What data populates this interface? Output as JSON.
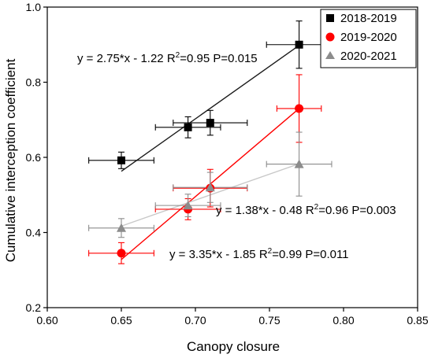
{
  "chart_data": {
    "type": "scatter",
    "xlabel": "Canopy closure",
    "ylabel": "Cumulative interception coefficient",
    "xlim": [
      0.6,
      0.85
    ],
    "ylim": [
      0.2,
      1.0
    ],
    "xticks": [
      0.6,
      0.65,
      0.7,
      0.75,
      0.8,
      0.85
    ],
    "yticks": [
      0.2,
      0.4,
      0.6,
      0.8,
      1.0
    ],
    "xtick_labels": [
      "0.60",
      "0.65",
      "0.70",
      "0.75",
      "0.80",
      "0.85"
    ],
    "ytick_labels": [
      "0.2",
      "0.4",
      "0.6",
      "0.8",
      "1.0"
    ],
    "grid": false,
    "legend_position": "top-right",
    "series": [
      {
        "name": "2018-2019",
        "color": "#000000",
        "line_color": "#1a1a1a",
        "marker": "square",
        "points": [
          {
            "x": 0.65,
            "y": 0.592,
            "xerr": 0.022,
            "yerr": 0.022
          },
          {
            "x": 0.695,
            "y": 0.68,
            "xerr": 0.022,
            "yerr": 0.028
          },
          {
            "x": 0.71,
            "y": 0.692,
            "xerr": 0.025,
            "yerr": 0.033
          },
          {
            "x": 0.77,
            "y": 0.9,
            "xerr": 0.022,
            "yerr": 0.063
          }
        ],
        "fit": {
          "x": [
            0.65,
            0.77
          ],
          "y": [
            0.563,
            0.898
          ]
        },
        "equation": {
          "main": "y = 2.75*x - 1.22  R",
          "sup": "2",
          "tail": "=0.95  P=0.015"
        }
      },
      {
        "name": "2019-2020",
        "color": "#ff0000",
        "line_color": "#ff0000",
        "marker": "circle",
        "points": [
          {
            "x": 0.65,
            "y": 0.345,
            "xerr": 0.022,
            "yerr": 0.028
          },
          {
            "x": 0.695,
            "y": 0.462,
            "xerr": 0.022,
            "yerr": 0.028
          },
          {
            "x": 0.71,
            "y": 0.518,
            "xerr": 0.025,
            "yerr": 0.05
          },
          {
            "x": 0.77,
            "y": 0.73,
            "xerr": 0.015,
            "yerr": 0.09
          }
        ],
        "fit": {
          "x": [
            0.65,
            0.77
          ],
          "y": [
            0.328,
            0.73
          ]
        },
        "equation": {
          "main": "y = 3.35*x - 1.85  R",
          "sup": "2",
          "tail": "=0.99  P=0.011"
        }
      },
      {
        "name": "2020-2021",
        "color": "#8c8c8c",
        "line_color": "#c8c8c8",
        "marker": "triangle",
        "points": [
          {
            "x": 0.65,
            "y": 0.412,
            "xerr": 0.022,
            "yerr": 0.025
          },
          {
            "x": 0.695,
            "y": 0.472,
            "xerr": 0.022,
            "yerr": 0.03
          },
          {
            "x": 0.71,
            "y": 0.52,
            "xerr": 0.025,
            "yerr": 0.04
          },
          {
            "x": 0.77,
            "y": 0.582,
            "xerr": 0.022,
            "yerr": 0.085
          }
        ],
        "fit": {
          "x": [
            0.65,
            0.77
          ],
          "y": [
            0.417,
            0.583
          ]
        },
        "equation": {
          "main": "y = 1.38*x - 0.48  R",
          "sup": "2",
          "tail": "=0.96  P=0.003"
        }
      }
    ]
  }
}
